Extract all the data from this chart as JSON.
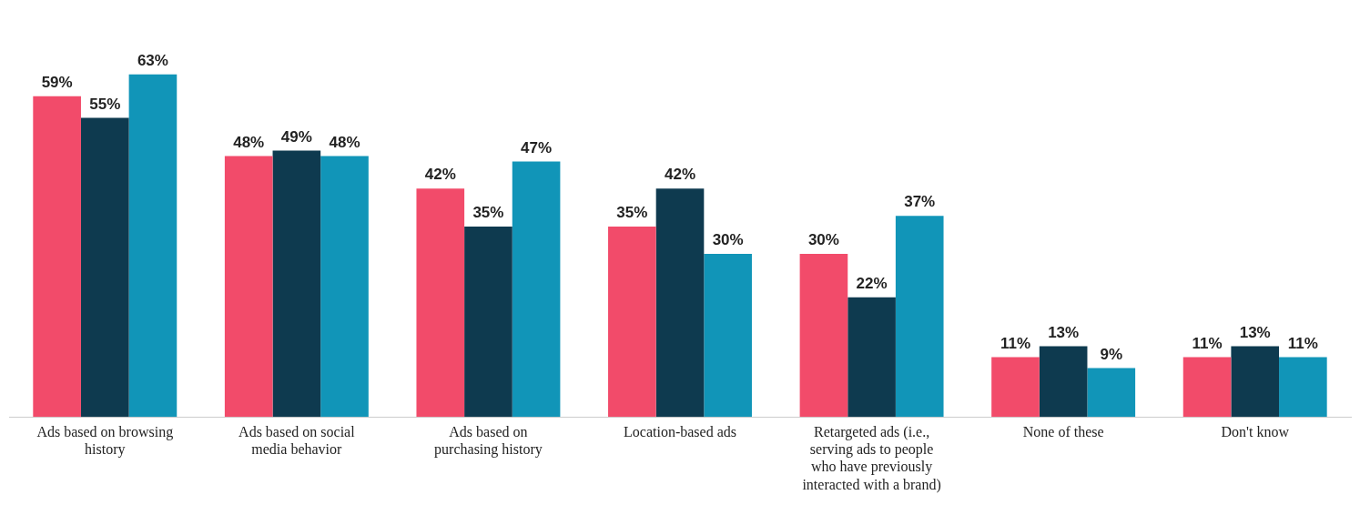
{
  "chart_data": {
    "type": "bar",
    "categories": [
      "Ads based on browsing history",
      "Ads based on social media behavior",
      "Ads based on purchasing history",
      "Location-based ads",
      "Retargeted ads (i.e., serving ads to people who have previously interacted with a brand)",
      "None of these",
      "Don't know"
    ],
    "series": [
      {
        "color": "#f24b6a",
        "values": [
          59,
          48,
          42,
          35,
          30,
          11,
          11
        ],
        "value_labels": [
          "59%",
          "48%",
          "42%",
          "35%",
          "30%",
          "11%",
          "11%"
        ]
      },
      {
        "color": "#0e3a4f",
        "values": [
          55,
          49,
          35,
          42,
          22,
          13,
          13
        ],
        "value_labels": [
          "55%",
          "49%",
          "35%",
          "42%",
          "22%",
          "13%",
          "13%"
        ]
      },
      {
        "color": "#1195b8",
        "values": [
          63,
          48,
          47,
          30,
          37,
          9,
          11
        ],
        "value_labels": [
          "63%",
          "48%",
          "47%",
          "30%",
          "37%",
          "9%",
          "11%"
        ]
      }
    ],
    "grid": false,
    "legend": false
  }
}
